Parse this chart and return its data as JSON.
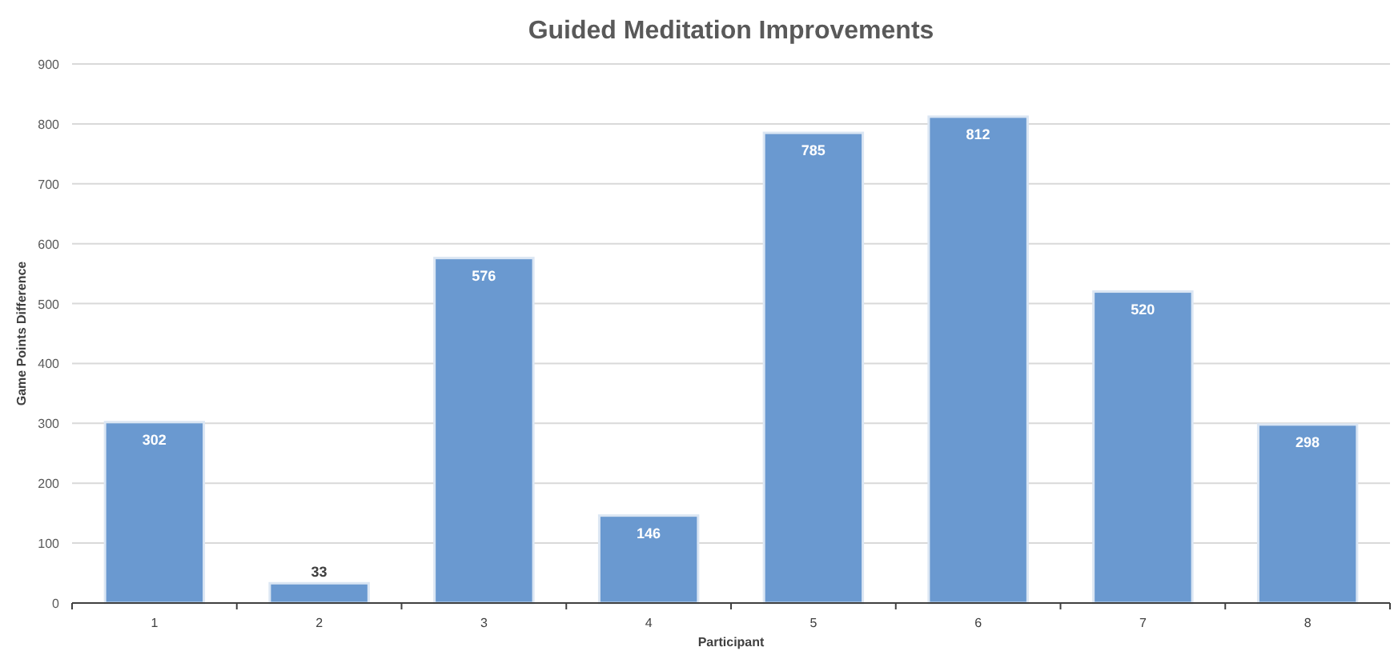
{
  "chart_data": {
    "type": "bar",
    "title": "Guided Meditation Improvements",
    "xlabel": "Participant",
    "ylabel": "Game Points Difference",
    "categories": [
      "1",
      "2",
      "3",
      "4",
      "5",
      "6",
      "7",
      "8"
    ],
    "values": [
      302,
      33,
      576,
      146,
      785,
      812,
      520,
      298
    ],
    "color": "#6a99d0",
    "ylim": [
      0,
      900
    ],
    "yticks": [
      0,
      100,
      200,
      300,
      400,
      500,
      600,
      700,
      800,
      900
    ],
    "grid": "y",
    "data_labels": true
  }
}
